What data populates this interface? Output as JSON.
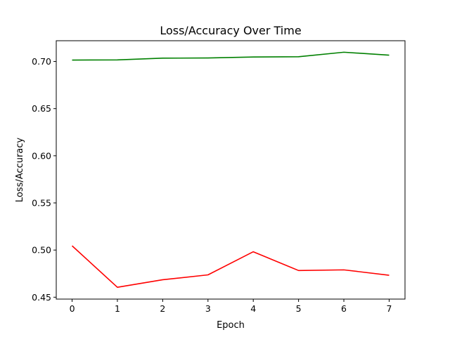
{
  "chart_data": {
    "type": "line",
    "title": "Loss/Accuracy Over Time",
    "xlabel": "Epoch",
    "ylabel": "Loss/Accuracy",
    "x": [
      0,
      1,
      2,
      3,
      4,
      5,
      6,
      7
    ],
    "xticks": [
      "0",
      "1",
      "2",
      "3",
      "4",
      "5",
      "6",
      "7"
    ],
    "yticks": [
      "0.45",
      "0.50",
      "0.55",
      "0.60",
      "0.65",
      "0.70"
    ],
    "xlim": [
      -0.35,
      7.35
    ],
    "ylim": [
      0.448,
      0.722
    ],
    "grid": false,
    "legend": "none",
    "series": [
      {
        "color": "#008000",
        "values": [
          0.7015,
          0.7017,
          0.7035,
          0.7037,
          0.7047,
          0.705,
          0.7098,
          0.7067
        ]
      },
      {
        "color": "#ff0000",
        "values": [
          0.5045,
          0.4605,
          0.4685,
          0.4737,
          0.4982,
          0.4783,
          0.479,
          0.4733
        ]
      }
    ]
  }
}
